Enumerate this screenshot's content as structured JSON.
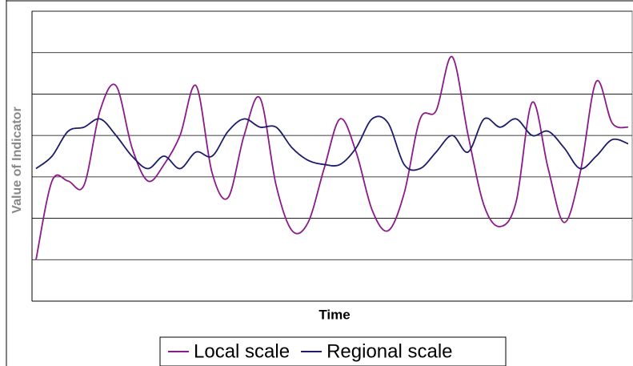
{
  "chart_data": {
    "type": "line",
    "x_label": "Time",
    "y_label": "Value of Indicator",
    "ylim": [
      0,
      7
    ],
    "yticks": [
      1,
      2,
      3,
      4,
      5,
      6,
      7
    ],
    "grid": true,
    "legend": "bottom",
    "series": [
      {
        "name": "Local scale",
        "color": "#8b1a8b",
        "values": [
          1.0,
          2.9,
          2.9,
          2.8,
          4.6,
          5.2,
          3.7,
          2.9,
          3.3,
          4.0,
          5.2,
          3.1,
          2.5,
          4.0,
          4.9,
          2.8,
          1.7,
          1.9,
          3.2,
          4.4,
          3.6,
          2.2,
          1.7,
          2.6,
          4.4,
          4.6,
          5.9,
          4.0,
          2.3,
          1.8,
          2.4,
          4.8,
          3.2,
          1.9,
          3.1,
          5.3,
          4.3,
          4.2
        ]
      },
      {
        "name": "Regional scale",
        "color": "#1c1c6b",
        "values": [
          3.2,
          3.5,
          4.1,
          4.2,
          4.4,
          4.0,
          3.5,
          3.2,
          3.5,
          3.2,
          3.6,
          3.5,
          4.1,
          4.4,
          4.2,
          4.2,
          3.7,
          3.4,
          3.3,
          3.3,
          3.7,
          4.4,
          4.3,
          3.3,
          3.2,
          3.6,
          4.0,
          3.6,
          4.4,
          4.2,
          4.4,
          4.0,
          4.1,
          3.7,
          3.2,
          3.5,
          3.9,
          3.8
        ]
      }
    ]
  }
}
